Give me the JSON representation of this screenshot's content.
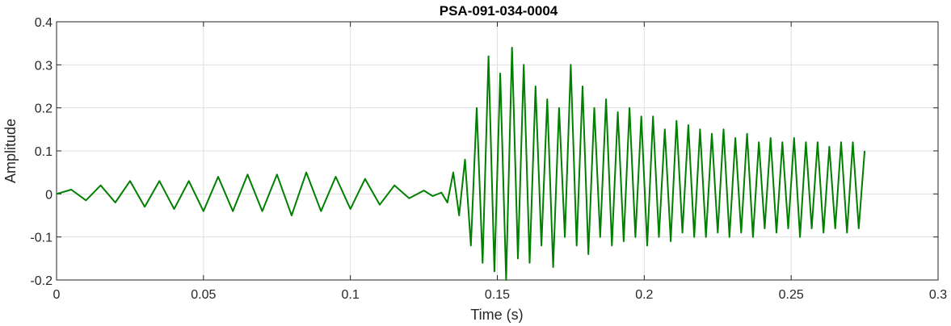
{
  "chart_data": {
    "type": "line",
    "title": "PSA-091-034-0004",
    "xlabel": "Time (s)",
    "ylabel": "Amplitude",
    "xlim": [
      0,
      0.3
    ],
    "ylim": [
      -0.2,
      0.4
    ],
    "xticks": [
      0,
      0.05,
      0.1,
      0.15,
      0.2,
      0.25,
      0.3
    ],
    "xtick_labels": [
      "0",
      "0.05",
      "0.1",
      "0.15",
      "0.2",
      "0.25",
      "0.3"
    ],
    "yticks": [
      -0.2,
      -0.1,
      0,
      0.1,
      0.2,
      0.3,
      0.4
    ],
    "ytick_labels": [
      "-0.2",
      "-0.1",
      "0",
      "0.1",
      "0.2",
      "0.3",
      "0.4"
    ],
    "grid": true,
    "line_color": "#008000",
    "series": [
      {
        "x": [
          0,
          0.005,
          0.01,
          0.015,
          0.02,
          0.025,
          0.03,
          0.035,
          0.04,
          0.045,
          0.05,
          0.055,
          0.06,
          0.065,
          0.07,
          0.075,
          0.08,
          0.085,
          0.09,
          0.095,
          0.1,
          0.105,
          0.11,
          0.115,
          0.12,
          0.125,
          0.128,
          0.131,
          0.133,
          0.135,
          0.137,
          0.139,
          0.141,
          0.143,
          0.145,
          0.147,
          0.149,
          0.151,
          0.153,
          0.155,
          0.157,
          0.159,
          0.161,
          0.163,
          0.165,
          0.167,
          0.169,
          0.171,
          0.173,
          0.175,
          0.177,
          0.179,
          0.181,
          0.183,
          0.185,
          0.187,
          0.189,
          0.191,
          0.193,
          0.195,
          0.197,
          0.199,
          0.201,
          0.203,
          0.205,
          0.207,
          0.209,
          0.211,
          0.213,
          0.215,
          0.217,
          0.219,
          0.221,
          0.223,
          0.225,
          0.227,
          0.229,
          0.231,
          0.233,
          0.235,
          0.237,
          0.239,
          0.241,
          0.243,
          0.245,
          0.247,
          0.249,
          0.251,
          0.253,
          0.255,
          0.257,
          0.259,
          0.261,
          0.263,
          0.265,
          0.267,
          0.269,
          0.271,
          0.273,
          0.275
        ],
        "y": [
          0,
          0.01,
          -0.015,
          0.02,
          -0.02,
          0.03,
          -0.03,
          0.03,
          -0.035,
          0.03,
          -0.04,
          0.04,
          -0.04,
          0.045,
          -0.04,
          0.045,
          -0.05,
          0.05,
          -0.04,
          0.04,
          -0.035,
          0.035,
          -0.025,
          0.02,
          -0.01,
          0.008,
          -0.005,
          0.003,
          -0.02,
          0.05,
          -0.05,
          0.08,
          -0.12,
          0.2,
          -0.16,
          0.32,
          -0.18,
          0.28,
          -0.2,
          0.34,
          -0.15,
          0.3,
          -0.16,
          0.25,
          -0.12,
          0.22,
          -0.17,
          0.2,
          -0.1,
          0.3,
          -0.12,
          0.25,
          -0.14,
          0.2,
          -0.1,
          0.22,
          -0.12,
          0.19,
          -0.11,
          0.2,
          -0.1,
          0.18,
          -0.12,
          0.18,
          -0.1,
          0.15,
          -0.11,
          0.17,
          -0.09,
          0.16,
          -0.1,
          0.15,
          -0.1,
          0.14,
          -0.09,
          0.15,
          -0.1,
          0.13,
          -0.09,
          0.14,
          -0.1,
          0.12,
          -0.08,
          0.13,
          -0.09,
          0.12,
          -0.08,
          0.13,
          -0.1,
          0.12,
          -0.08,
          0.12,
          -0.09,
          0.11,
          -0.08,
          0.12,
          -0.09,
          0.12,
          -0.08,
          0.1
        ]
      }
    ]
  }
}
